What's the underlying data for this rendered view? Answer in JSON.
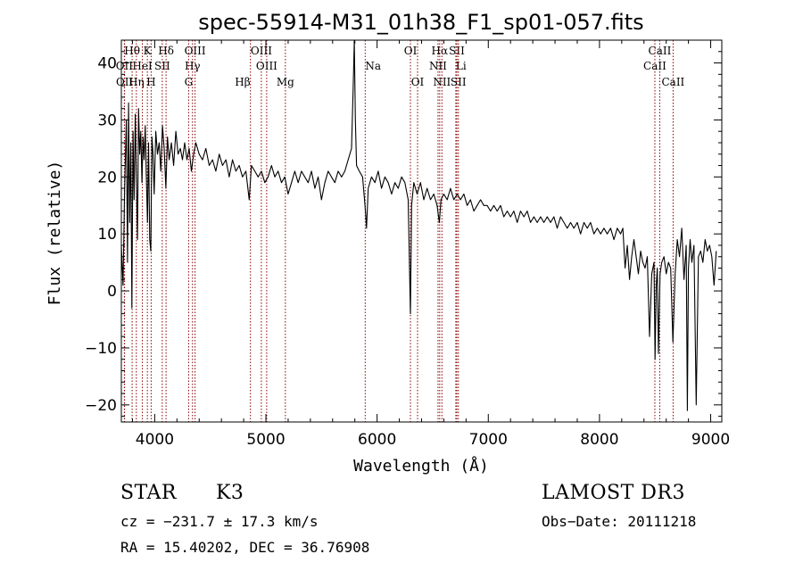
{
  "chart_data": {
    "type": "line",
    "title": "spec-55914-M31_01h38_F1_sp01-057.fits",
    "xlabel": "Wavelength (Å)",
    "ylabel": "Flux (relative)",
    "xlim": [
      3700,
      9100
    ],
    "ylim": [
      -23,
      44
    ],
    "xticks": [
      4000,
      5000,
      6000,
      7000,
      8000,
      9000
    ],
    "yticks": [
      -20,
      -10,
      0,
      10,
      20,
      30,
      40
    ],
    "line_color": "#8b0000",
    "series": [
      {
        "name": "flux",
        "points": [
          [
            3700,
            8
          ],
          [
            3715,
            1
          ],
          [
            3730,
            18
          ],
          [
            3745,
            30
          ],
          [
            3755,
            5
          ],
          [
            3765,
            33
          ],
          [
            3775,
            12
          ],
          [
            3785,
            26
          ],
          [
            3795,
            -3
          ],
          [
            3805,
            28
          ],
          [
            3815,
            16
          ],
          [
            3825,
            31
          ],
          [
            3835,
            20
          ],
          [
            3845,
            9
          ],
          [
            3855,
            32
          ],
          [
            3865,
            24
          ],
          [
            3875,
            28
          ],
          [
            3885,
            19
          ],
          [
            3895,
            27
          ],
          [
            3905,
            23
          ],
          [
            3915,
            29
          ],
          [
            3925,
            20
          ],
          [
            3935,
            12
          ],
          [
            3945,
            26
          ],
          [
            3955,
            9
          ],
          [
            3965,
            7
          ],
          [
            3975,
            27
          ],
          [
            3985,
            24
          ],
          [
            3995,
            17
          ],
          [
            4010,
            28
          ],
          [
            4025,
            24
          ],
          [
            4040,
            26
          ],
          [
            4055,
            21
          ],
          [
            4070,
            29
          ],
          [
            4085,
            25
          ],
          [
            4100,
            18
          ],
          [
            4115,
            27
          ],
          [
            4130,
            23
          ],
          [
            4150,
            26
          ],
          [
            4170,
            22
          ],
          [
            4190,
            28
          ],
          [
            4210,
            24
          ],
          [
            4230,
            25
          ],
          [
            4250,
            23
          ],
          [
            4270,
            26
          ],
          [
            4290,
            23
          ],
          [
            4310,
            25
          ],
          [
            4330,
            21
          ],
          [
            4350,
            24
          ],
          [
            4370,
            26
          ],
          [
            4400,
            24
          ],
          [
            4430,
            23
          ],
          [
            4460,
            25
          ],
          [
            4490,
            22
          ],
          [
            4520,
            23
          ],
          [
            4550,
            21
          ],
          [
            4580,
            24
          ],
          [
            4610,
            22
          ],
          [
            4640,
            23
          ],
          [
            4670,
            20
          ],
          [
            4700,
            23
          ],
          [
            4730,
            21
          ],
          [
            4760,
            22
          ],
          [
            4790,
            20
          ],
          [
            4820,
            21
          ],
          [
            4850,
            16
          ],
          [
            4870,
            22
          ],
          [
            4900,
            21
          ],
          [
            4930,
            20
          ],
          [
            4960,
            21
          ],
          [
            4990,
            19
          ],
          [
            5020,
            20
          ],
          [
            5050,
            22
          ],
          [
            5080,
            20
          ],
          [
            5110,
            21
          ],
          [
            5140,
            19
          ],
          [
            5170,
            20
          ],
          [
            5200,
            17
          ],
          [
            5230,
            19
          ],
          [
            5260,
            21
          ],
          [
            5290,
            19
          ],
          [
            5320,
            21
          ],
          [
            5350,
            20
          ],
          [
            5380,
            19
          ],
          [
            5410,
            21
          ],
          [
            5440,
            18
          ],
          [
            5470,
            20
          ],
          [
            5500,
            16
          ],
          [
            5530,
            19
          ],
          [
            5560,
            21
          ],
          [
            5590,
            20
          ],
          [
            5620,
            19
          ],
          [
            5650,
            21
          ],
          [
            5680,
            20
          ],
          [
            5710,
            21
          ],
          [
            5740,
            23
          ],
          [
            5770,
            25
          ],
          [
            5785,
            36
          ],
          [
            5795,
            44
          ],
          [
            5805,
            30
          ],
          [
            5815,
            22
          ],
          [
            5840,
            21
          ],
          [
            5870,
            20
          ],
          [
            5895,
            14
          ],
          [
            5905,
            11
          ],
          [
            5920,
            18
          ],
          [
            5950,
            20
          ],
          [
            5980,
            19
          ],
          [
            6010,
            21
          ],
          [
            6040,
            18
          ],
          [
            6070,
            20
          ],
          [
            6100,
            19
          ],
          [
            6130,
            17
          ],
          [
            6160,
            19
          ],
          [
            6190,
            18
          ],
          [
            6220,
            20
          ],
          [
            6250,
            19
          ],
          [
            6280,
            16
          ],
          [
            6300,
            -4
          ],
          [
            6310,
            15
          ],
          [
            6330,
            19
          ],
          [
            6360,
            17
          ],
          [
            6390,
            19
          ],
          [
            6420,
            16
          ],
          [
            6450,
            18
          ],
          [
            6480,
            16
          ],
          [
            6510,
            17
          ],
          [
            6540,
            15
          ],
          [
            6560,
            12
          ],
          [
            6575,
            16
          ],
          [
            6600,
            17
          ],
          [
            6630,
            16
          ],
          [
            6660,
            18
          ],
          [
            6690,
            16
          ],
          [
            6720,
            17
          ],
          [
            6750,
            16
          ],
          [
            6780,
            17
          ],
          [
            6810,
            15
          ],
          [
            6840,
            16
          ],
          [
            6870,
            14
          ],
          [
            6900,
            15
          ],
          [
            6930,
            16
          ],
          [
            6960,
            15
          ],
          [
            6990,
            15
          ],
          [
            7020,
            14
          ],
          [
            7050,
            15
          ],
          [
            7080,
            14
          ],
          [
            7110,
            15
          ],
          [
            7140,
            13
          ],
          [
            7170,
            14
          ],
          [
            7200,
            13
          ],
          [
            7230,
            14
          ],
          [
            7260,
            12
          ],
          [
            7290,
            14
          ],
          [
            7320,
            13
          ],
          [
            7350,
            14
          ],
          [
            7380,
            12
          ],
          [
            7410,
            13
          ],
          [
            7440,
            12
          ],
          [
            7470,
            13
          ],
          [
            7500,
            12
          ],
          [
            7530,
            13
          ],
          [
            7560,
            12
          ],
          [
            7590,
            13
          ],
          [
            7620,
            11
          ],
          [
            7650,
            13
          ],
          [
            7680,
            12
          ],
          [
            7710,
            11
          ],
          [
            7740,
            12
          ],
          [
            7770,
            11
          ],
          [
            7800,
            12
          ],
          [
            7830,
            10
          ],
          [
            7860,
            12
          ],
          [
            7890,
            11
          ],
          [
            7920,
            12
          ],
          [
            7950,
            10
          ],
          [
            7980,
            11
          ],
          [
            8010,
            10
          ],
          [
            8040,
            11
          ],
          [
            8070,
            10
          ],
          [
            8100,
            11
          ],
          [
            8130,
            9
          ],
          [
            8160,
            11
          ],
          [
            8190,
            10
          ],
          [
            8210,
            11
          ],
          [
            8230,
            4
          ],
          [
            8250,
            8
          ],
          [
            8270,
            2
          ],
          [
            8290,
            6
          ],
          [
            8310,
            9
          ],
          [
            8330,
            6
          ],
          [
            8350,
            3
          ],
          [
            8370,
            7
          ],
          [
            8390,
            5
          ],
          [
            8410,
            4
          ],
          [
            8430,
            6
          ],
          [
            8450,
            -8
          ],
          [
            8470,
            3
          ],
          [
            8490,
            5
          ],
          [
            8500,
            -12
          ],
          [
            8510,
            1
          ],
          [
            8520,
            4
          ],
          [
            8530,
            -11
          ],
          [
            8545,
            3
          ],
          [
            8560,
            5
          ],
          [
            8580,
            6
          ],
          [
            8600,
            3
          ],
          [
            8620,
            5
          ],
          [
            8640,
            4
          ],
          [
            8660,
            -9
          ],
          [
            8680,
            3
          ],
          [
            8700,
            9
          ],
          [
            8720,
            6
          ],
          [
            8740,
            11
          ],
          [
            8760,
            2
          ],
          [
            8780,
            8
          ],
          [
            8790,
            -21
          ],
          [
            8800,
            4
          ],
          [
            8815,
            9
          ],
          [
            8830,
            5
          ],
          [
            8850,
            8
          ],
          [
            8870,
            -20
          ],
          [
            8890,
            6
          ],
          [
            8910,
            7
          ],
          [
            8930,
            5
          ],
          [
            8950,
            9
          ],
          [
            8970,
            7
          ],
          [
            8990,
            8
          ],
          [
            9010,
            6
          ],
          [
            9030,
            1
          ],
          [
            9050,
            7
          ]
        ]
      }
    ],
    "spectral_lines": [
      {
        "label": "Hθ",
        "wl": 3797,
        "row": 0,
        "ha": "middle"
      },
      {
        "label": "K",
        "wl": 3934,
        "row": 0,
        "ha": "middle"
      },
      {
        "label": "Hδ",
        "wl": 4102,
        "row": 0,
        "ha": "middle"
      },
      {
        "label": "OIII",
        "wl": 4363,
        "row": 0,
        "ha": "middle"
      },
      {
        "label": "OIII",
        "wl": 4959,
        "row": 0,
        "ha": "middle"
      },
      {
        "label": "OI",
        "wl": 6300,
        "row": 0,
        "ha": "middle"
      },
      {
        "label": "Hα",
        "wl": 6563,
        "row": 0,
        "ha": "middle"
      },
      {
        "label": "SII",
        "wl": 6717,
        "row": 0,
        "ha": "middle"
      },
      {
        "label": "CaII",
        "wl": 8542,
        "row": 0,
        "ha": "middle"
      },
      {
        "label": "OII",
        "wl": 3727,
        "row": 1,
        "ha": "middle"
      },
      {
        "label": "HeI",
        "wl": 3889,
        "row": 1,
        "ha": "middle"
      },
      {
        "label": "SII",
        "wl": 4068,
        "row": 1,
        "ha": "middle"
      },
      {
        "label": "Hγ",
        "wl": 4340,
        "row": 1,
        "ha": "middle"
      },
      {
        "label": "OIII",
        "wl": 5007,
        "row": 1,
        "ha": "middle"
      },
      {
        "label": "Na",
        "wl": 5893,
        "row": 1,
        "ha": "start"
      },
      {
        "label": "NII",
        "wl": 6548,
        "row": 1,
        "ha": "middle"
      },
      {
        "label": "Li",
        "wl": 6708,
        "row": 1,
        "ha": "start"
      },
      {
        "label": "CaII",
        "wl": 8498,
        "row": 1,
        "ha": "middle"
      },
      {
        "label": "OII",
        "wl": 3729,
        "row": 2,
        "ha": "middle"
      },
      {
        "label": "Hη",
        "wl": 3835,
        "row": 2,
        "ha": "middle"
      },
      {
        "label": "H",
        "wl": 3968,
        "row": 2,
        "ha": "middle"
      },
      {
        "label": "G",
        "wl": 4305,
        "row": 2,
        "ha": "middle"
      },
      {
        "label": "Hβ",
        "wl": 4861,
        "row": 2,
        "ha": "end"
      },
      {
        "label": "Mg",
        "wl": 5175,
        "row": 2,
        "ha": "middle"
      },
      {
        "label": "OI",
        "wl": 6364,
        "row": 2,
        "ha": "middle"
      },
      {
        "label": "NII",
        "wl": 6583,
        "row": 2,
        "ha": "middle"
      },
      {
        "label": "SII",
        "wl": 6731,
        "row": 2,
        "ha": "middle"
      },
      {
        "label": "CaII",
        "wl": 8662,
        "row": 2,
        "ha": "middle"
      }
    ]
  },
  "info": {
    "object_class": "STAR",
    "subclass": "K3",
    "survey": "LAMOST DR3",
    "redshift": "cz = −231.7 ± 17.3 km/s",
    "obs_date": "Obs−Date: 20111218",
    "coords": "RA =  15.40202, DEC =  36.76908"
  }
}
